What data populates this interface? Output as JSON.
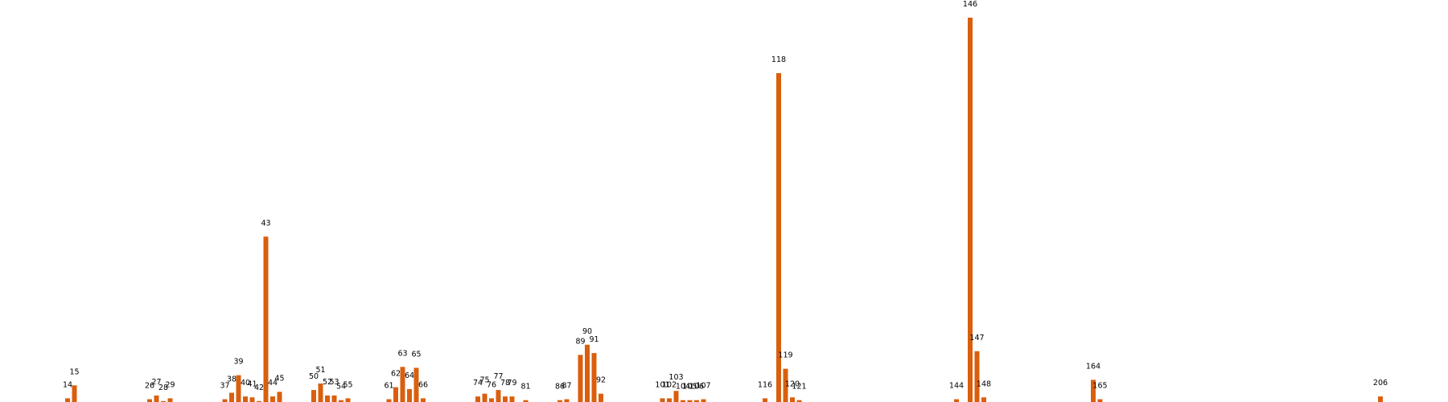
{
  "chart_data": {
    "type": "bar",
    "color": "#d95f0e",
    "x": [
      14,
      15,
      26,
      27,
      28,
      29,
      37,
      38,
      39,
      40,
      41,
      42,
      43,
      44,
      45,
      50,
      51,
      52,
      53,
      54,
      55,
      61,
      62,
      63,
      64,
      65,
      66,
      74,
      75,
      76,
      77,
      78,
      79,
      81,
      86,
      87,
      89,
      90,
      91,
      92,
      101,
      102,
      103,
      104,
      105,
      106,
      107,
      116,
      118,
      119,
      120,
      121,
      144,
      146,
      147,
      148,
      164,
      165,
      206
    ],
    "values": [
      4,
      18,
      3,
      7,
      1,
      4,
      3,
      10,
      29,
      6,
      5,
      1,
      179,
      6,
      11,
      13,
      20,
      7,
      7,
      2,
      4,
      3,
      16,
      38,
      14,
      37,
      4,
      6,
      9,
      4,
      13,
      6,
      6,
      2,
      2,
      3,
      51,
      62,
      53,
      9,
      4,
      4,
      12,
      2,
      2,
      2,
      3,
      4,
      356,
      36,
      5,
      2,
      3,
      416,
      55,
      5,
      24,
      3,
      6
    ]
  }
}
